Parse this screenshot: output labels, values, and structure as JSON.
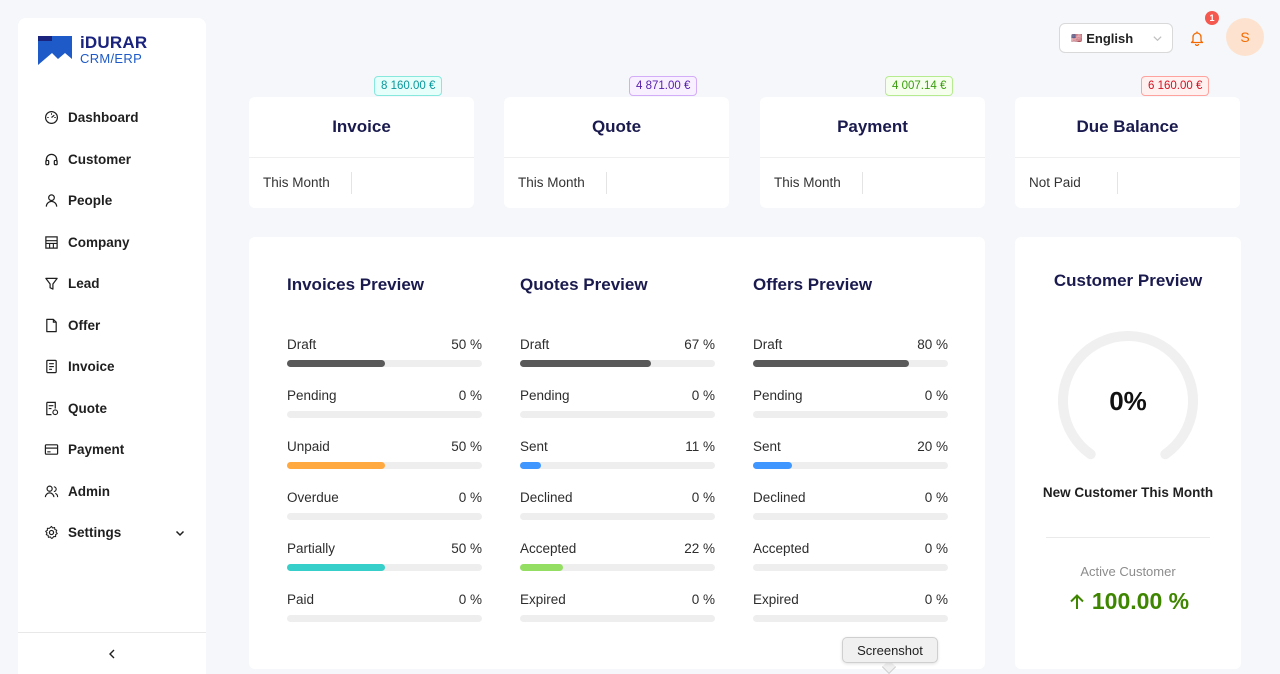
{
  "brand": {
    "title": "iDURAR",
    "subtitle": "CRM/ERP",
    "color": "#1a237e"
  },
  "sidebar": {
    "items": [
      {
        "label": "Dashboard",
        "icon": "dashboard-icon"
      },
      {
        "label": "Customer",
        "icon": "headset-icon"
      },
      {
        "label": "People",
        "icon": "user-icon"
      },
      {
        "label": "Company",
        "icon": "shop-icon"
      },
      {
        "label": "Lead",
        "icon": "filter-icon"
      },
      {
        "label": "Offer",
        "icon": "file-icon"
      },
      {
        "label": "Invoice",
        "icon": "container-icon"
      },
      {
        "label": "Quote",
        "icon": "file-sync-icon"
      },
      {
        "label": "Payment",
        "icon": "credit-card-icon"
      },
      {
        "label": "Admin",
        "icon": "team-icon"
      },
      {
        "label": "Settings",
        "icon": "gear-icon"
      }
    ],
    "collapse_icon": "chevron-left-icon"
  },
  "header": {
    "language": "English",
    "language_flag": "🇺🇸",
    "notifications": "1",
    "avatar_initial": "S"
  },
  "cards": [
    {
      "title": "Invoice",
      "label": "This Month",
      "value": "8 160.00 €",
      "color": "#08979c",
      "bg": "#e6fffb",
      "border": "#87e8de"
    },
    {
      "title": "Quote",
      "label": "This Month",
      "value": "4 871.00 €",
      "color": "#531dab",
      "bg": "#f9f0ff",
      "border": "#d3adf7"
    },
    {
      "title": "Payment",
      "label": "This Month",
      "value": "4 007.14 €",
      "color": "#389e0d",
      "bg": "#f6ffed",
      "border": "#b7eb8f"
    },
    {
      "title": "Due Balance",
      "label": "Not Paid",
      "value": "6 160.00 €",
      "color": "#cf1322",
      "bg": "#fff1f0",
      "border": "#ffa39e"
    }
  ],
  "previews": [
    {
      "title": "Invoices Preview",
      "rows": [
        {
          "label": "Draft",
          "value": "50 %",
          "percent": 50,
          "color": "#595959"
        },
        {
          "label": "Pending",
          "value": "0 %",
          "percent": 0,
          "color": "#1890ff"
        },
        {
          "label": "Unpaid",
          "value": "50 %",
          "percent": 50,
          "color": "#ffa940"
        },
        {
          "label": "Overdue",
          "value": "0 %",
          "percent": 0,
          "color": "#ff4d4f"
        },
        {
          "label": "Partially",
          "value": "50 %",
          "percent": 50,
          "color": "#36cfc9"
        },
        {
          "label": "Paid",
          "value": "0 %",
          "percent": 0,
          "color": "#73d13d"
        }
      ]
    },
    {
      "title": "Quotes Preview",
      "rows": [
        {
          "label": "Draft",
          "value": "67 %",
          "percent": 67,
          "color": "#595959"
        },
        {
          "label": "Pending",
          "value": "0 %",
          "percent": 0,
          "color": "#1890ff"
        },
        {
          "label": "Sent",
          "value": "11 %",
          "percent": 11,
          "color": "#4096ff"
        },
        {
          "label": "Declined",
          "value": "0 %",
          "percent": 0,
          "color": "#ff4d4f"
        },
        {
          "label": "Accepted",
          "value": "22 %",
          "percent": 22,
          "color": "#95de64"
        },
        {
          "label": "Expired",
          "value": "0 %",
          "percent": 0,
          "color": "#ff7875"
        }
      ]
    },
    {
      "title": "Offers Preview",
      "rows": [
        {
          "label": "Draft",
          "value": "80 %",
          "percent": 80,
          "color": "#595959"
        },
        {
          "label": "Pending",
          "value": "0 %",
          "percent": 0,
          "color": "#1890ff"
        },
        {
          "label": "Sent",
          "value": "20 %",
          "percent": 20,
          "color": "#4096ff"
        },
        {
          "label": "Declined",
          "value": "0 %",
          "percent": 0,
          "color": "#ff4d4f"
        },
        {
          "label": "Accepted",
          "value": "0 %",
          "percent": 0,
          "color": "#95de64"
        },
        {
          "label": "Expired",
          "value": "0 %",
          "percent": 0,
          "color": "#ff7875"
        }
      ]
    }
  ],
  "customer_preview": {
    "title": "Customer Preview",
    "gauge_value": "0%",
    "gauge_percent": 0,
    "subtitle": "New Customer This Month",
    "active_label": "Active Customer",
    "active_value": "100.00 %",
    "active_color": "#3f8600"
  },
  "tooltip": "Screenshot"
}
